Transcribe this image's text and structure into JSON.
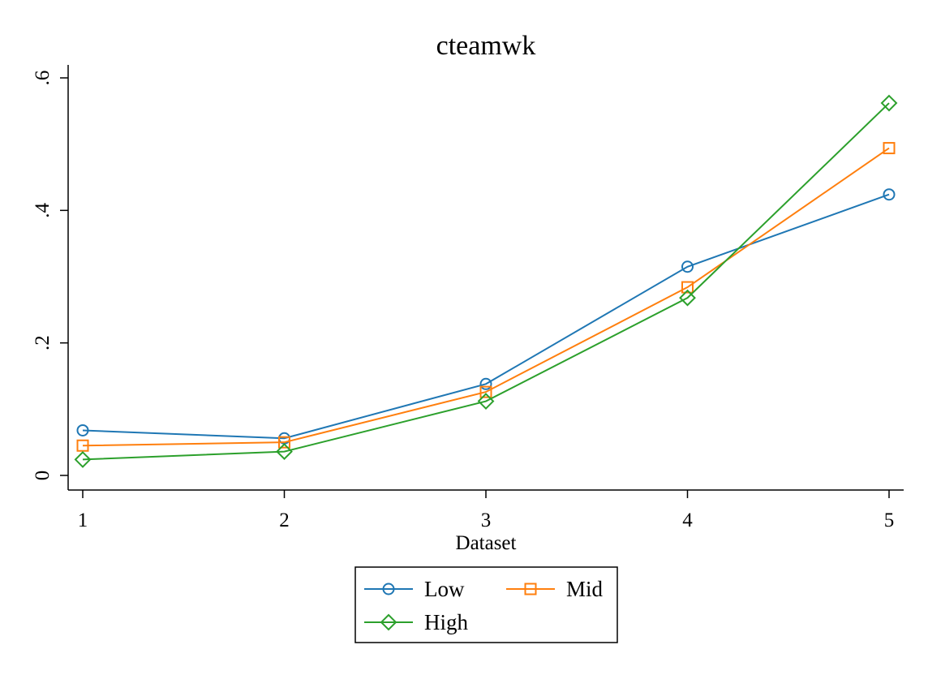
{
  "chart_data": {
    "type": "line",
    "title": "cteamwk",
    "xlabel": "Dataset",
    "ylabel": "",
    "x": [
      1,
      2,
      3,
      4,
      5
    ],
    "x_tick_labels": [
      "1",
      "2",
      "3",
      "4",
      "5"
    ],
    "xlim": [
      1,
      5
    ],
    "y_ticks": [
      0,
      0.2,
      0.4,
      0.6
    ],
    "y_tick_labels": [
      "0",
      ".2",
      ".4",
      ".6"
    ],
    "ylim": [
      0,
      0.6
    ],
    "grid": false,
    "legend_position": "bottom",
    "series": [
      {
        "name": "Low",
        "color": "#1f77b4",
        "marker": "circle",
        "values": [
          0.068,
          0.056,
          0.138,
          0.315,
          0.424
        ]
      },
      {
        "name": "Mid",
        "color": "#ff7f0e",
        "marker": "square",
        "values": [
          0.045,
          0.05,
          0.126,
          0.284,
          0.494
        ]
      },
      {
        "name": "High",
        "color": "#2ca02c",
        "marker": "diamond",
        "values": [
          0.024,
          0.036,
          0.112,
          0.268,
          0.562
        ]
      }
    ]
  }
}
